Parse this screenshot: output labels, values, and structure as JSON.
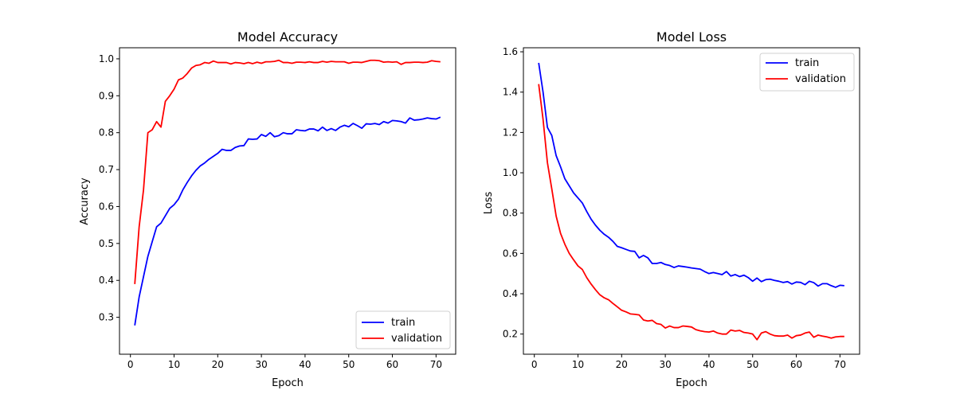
{
  "chart_data": [
    {
      "type": "line",
      "title": "Model Accuracy",
      "xlabel": "Epoch",
      "ylabel": "Accuracy",
      "xlim": [
        -2.5,
        74.5
      ],
      "ylim": [
        0.2,
        1.03
      ],
      "xticks": [
        0,
        10,
        20,
        30,
        40,
        50,
        60,
        70
      ],
      "yticks": [
        0.3,
        0.4,
        0.5,
        0.6,
        0.7,
        0.8,
        0.9,
        1.0
      ],
      "ytick_labels": [
        "0.3",
        "0.4",
        "0.5",
        "0.6",
        "0.7",
        "0.8",
        "0.9",
        "1.0"
      ],
      "legend": "lower-right",
      "grid": false,
      "x": [
        1,
        2,
        3,
        4,
        5,
        6,
        7,
        8,
        9,
        10,
        11,
        12,
        13,
        14,
        15,
        16,
        17,
        18,
        19,
        20,
        21,
        22,
        23,
        24,
        25,
        26,
        27,
        28,
        29,
        30,
        31,
        32,
        33,
        34,
        35,
        36,
        37,
        38,
        39,
        40,
        41,
        42,
        43,
        44,
        45,
        46,
        47,
        48,
        49,
        50,
        51,
        52,
        53,
        54,
        55,
        56,
        57,
        58,
        59,
        60,
        61,
        62,
        63,
        64,
        65,
        66,
        67,
        68,
        69,
        70,
        71
      ],
      "series": [
        {
          "name": "train",
          "color": "#0000ff",
          "values": [
            0.278,
            0.355,
            0.41,
            0.465,
            0.505,
            0.545,
            0.555,
            0.575,
            0.595,
            0.605,
            0.62,
            0.645,
            0.665,
            0.683,
            0.698,
            0.71,
            0.718,
            0.728,
            0.736,
            0.744,
            0.755,
            0.752,
            0.752,
            0.76,
            0.764,
            0.765,
            0.783,
            0.782,
            0.783,
            0.795,
            0.79,
            0.8,
            0.789,
            0.792,
            0.8,
            0.797,
            0.797,
            0.808,
            0.806,
            0.805,
            0.81,
            0.81,
            0.805,
            0.815,
            0.806,
            0.811,
            0.806,
            0.815,
            0.82,
            0.816,
            0.825,
            0.819,
            0.812,
            0.824,
            0.823,
            0.825,
            0.822,
            0.83,
            0.826,
            0.833,
            0.832,
            0.83,
            0.826,
            0.84,
            0.834,
            0.835,
            0.837,
            0.84,
            0.838,
            0.837,
            0.842
          ]
        },
        {
          "name": "validation",
          "color": "#ff0000",
          "values": [
            0.39,
            0.545,
            0.645,
            0.8,
            0.808,
            0.83,
            0.815,
            0.885,
            0.9,
            0.918,
            0.943,
            0.948,
            0.96,
            0.975,
            0.982,
            0.984,
            0.99,
            0.988,
            0.994,
            0.99,
            0.99,
            0.99,
            0.986,
            0.99,
            0.989,
            0.987,
            0.99,
            0.987,
            0.991,
            0.988,
            0.992,
            0.992,
            0.993,
            0.996,
            0.99,
            0.99,
            0.988,
            0.991,
            0.991,
            0.99,
            0.992,
            0.99,
            0.99,
            0.993,
            0.991,
            0.993,
            0.992,
            0.992,
            0.992,
            0.988,
            0.991,
            0.991,
            0.99,
            0.993,
            0.996,
            0.996,
            0.995,
            0.991,
            0.992,
            0.991,
            0.992,
            0.985,
            0.99,
            0.99,
            0.991,
            0.991,
            0.99,
            0.991,
            0.995,
            0.993,
            0.992
          ]
        }
      ]
    },
    {
      "type": "line",
      "title": "Model Loss",
      "xlabel": "Epoch",
      "ylabel": "Loss",
      "xlim": [
        -2.5,
        74.5
      ],
      "ylim": [
        0.1,
        1.62
      ],
      "xticks": [
        0,
        10,
        20,
        30,
        40,
        50,
        60,
        70
      ],
      "yticks": [
        0.2,
        0.4,
        0.6,
        0.8,
        1.0,
        1.2,
        1.4,
        1.6
      ],
      "ytick_labels": [
        "0.2",
        "0.4",
        "0.6",
        "0.8",
        "1.0",
        "1.2",
        "1.4",
        "1.6"
      ],
      "legend": "top-right",
      "grid": false,
      "x": [
        1,
        2,
        3,
        4,
        5,
        6,
        7,
        8,
        9,
        10,
        11,
        12,
        13,
        14,
        15,
        16,
        17,
        18,
        19,
        20,
        21,
        22,
        23,
        24,
        25,
        26,
        27,
        28,
        29,
        30,
        31,
        32,
        33,
        34,
        35,
        36,
        37,
        38,
        39,
        40,
        41,
        42,
        43,
        44,
        45,
        46,
        47,
        48,
        49,
        50,
        51,
        52,
        53,
        54,
        55,
        56,
        57,
        58,
        59,
        60,
        61,
        62,
        63,
        64,
        65,
        66,
        67,
        68,
        69,
        70,
        71
      ],
      "series": [
        {
          "name": "train",
          "color": "#0000ff",
          "values": [
            1.545,
            1.4,
            1.225,
            1.185,
            1.085,
            1.03,
            0.97,
            0.935,
            0.9,
            0.875,
            0.85,
            0.808,
            0.77,
            0.74,
            0.715,
            0.695,
            0.68,
            0.66,
            0.635,
            0.628,
            0.62,
            0.612,
            0.61,
            0.578,
            0.59,
            0.578,
            0.55,
            0.55,
            0.555,
            0.545,
            0.54,
            0.53,
            0.538,
            0.535,
            0.532,
            0.528,
            0.525,
            0.522,
            0.51,
            0.5,
            0.505,
            0.5,
            0.495,
            0.51,
            0.488,
            0.495,
            0.485,
            0.492,
            0.48,
            0.462,
            0.478,
            0.46,
            0.47,
            0.472,
            0.466,
            0.462,
            0.456,
            0.46,
            0.448,
            0.458,
            0.456,
            0.445,
            0.462,
            0.455,
            0.438,
            0.45,
            0.45,
            0.44,
            0.432,
            0.442,
            0.44
          ]
        },
        {
          "name": "validation",
          "color": "#ff0000",
          "values": [
            1.44,
            1.265,
            1.05,
            0.92,
            0.785,
            0.7,
            0.645,
            0.6,
            0.568,
            0.538,
            0.52,
            0.48,
            0.448,
            0.42,
            0.395,
            0.38,
            0.37,
            0.352,
            0.335,
            0.318,
            0.31,
            0.3,
            0.298,
            0.295,
            0.27,
            0.265,
            0.268,
            0.252,
            0.248,
            0.23,
            0.24,
            0.232,
            0.232,
            0.24,
            0.238,
            0.235,
            0.222,
            0.216,
            0.212,
            0.21,
            0.215,
            0.205,
            0.2,
            0.2,
            0.22,
            0.215,
            0.218,
            0.208,
            0.205,
            0.2,
            0.172,
            0.205,
            0.212,
            0.2,
            0.192,
            0.19,
            0.19,
            0.195,
            0.18,
            0.192,
            0.195,
            0.205,
            0.21,
            0.184,
            0.195,
            0.19,
            0.186,
            0.18,
            0.186,
            0.188,
            0.188
          ]
        }
      ]
    }
  ]
}
